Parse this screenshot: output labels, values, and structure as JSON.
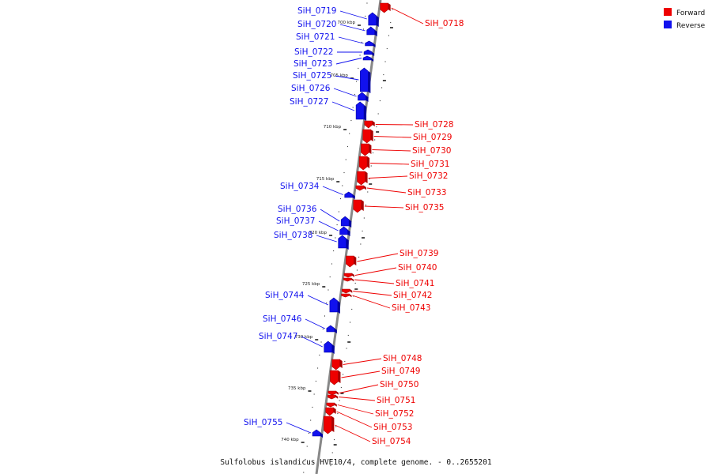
{
  "caption": "Sulfolobus islandicus HVE10/4, complete genome. - 0..2655201",
  "legend": [
    {
      "label": "Forward",
      "color": "#ee0000",
      "dark": "#aa0000",
      "strand": "forward"
    },
    {
      "label": "Reverse",
      "color": "#1111ee",
      "dark": "#0000a0",
      "strand": "reverse"
    }
  ],
  "kbp_labels": [
    "700 kbp",
    "705 kbp",
    "710 kbp",
    "715 kbp",
    "720 kbp",
    "725 kbp",
    "730 kbp",
    "735 kbp",
    "740 kbp"
  ],
  "genes": [
    {
      "name": "SiH_0718",
      "strand": "forward"
    },
    {
      "name": "SiH_0719",
      "strand": "reverse"
    },
    {
      "name": "SiH_0720",
      "strand": "reverse"
    },
    {
      "name": "SiH_0721",
      "strand": "reverse"
    },
    {
      "name": "SiH_0722",
      "strand": "reverse"
    },
    {
      "name": "SiH_0723",
      "strand": "reverse"
    },
    {
      "name": "SiH_0725",
      "strand": "reverse"
    },
    {
      "name": "SiH_0726",
      "strand": "reverse"
    },
    {
      "name": "SiH_0727",
      "strand": "reverse"
    },
    {
      "name": "SiH_0728",
      "strand": "forward"
    },
    {
      "name": "SiH_0729",
      "strand": "forward"
    },
    {
      "name": "SiH_0730",
      "strand": "forward"
    },
    {
      "name": "SiH_0731",
      "strand": "forward"
    },
    {
      "name": "SiH_0732",
      "strand": "forward"
    },
    {
      "name": "SiH_0733",
      "strand": "forward"
    },
    {
      "name": "SiH_0734",
      "strand": "reverse"
    },
    {
      "name": "SiH_0735",
      "strand": "forward"
    },
    {
      "name": "SiH_0736",
      "strand": "reverse"
    },
    {
      "name": "SiH_0737",
      "strand": "reverse"
    },
    {
      "name": "SiH_0738",
      "strand": "reverse"
    },
    {
      "name": "SiH_0739",
      "strand": "forward"
    },
    {
      "name": "SiH_0740",
      "strand": "forward"
    },
    {
      "name": "SiH_0741",
      "strand": "forward"
    },
    {
      "name": "SiH_0742",
      "strand": "forward"
    },
    {
      "name": "SiH_0743",
      "strand": "forward"
    },
    {
      "name": "SiH_0744",
      "strand": "reverse"
    },
    {
      "name": "SiH_0746",
      "strand": "reverse"
    },
    {
      "name": "SiH_0747",
      "strand": "reverse"
    },
    {
      "name": "SiH_0748",
      "strand": "forward"
    },
    {
      "name": "SiH_0749",
      "strand": "forward"
    },
    {
      "name": "SiH_0750",
      "strand": "forward"
    },
    {
      "name": "SiH_0751",
      "strand": "forward"
    },
    {
      "name": "SiH_0752",
      "strand": "forward"
    },
    {
      "name": "SiH_0753",
      "strand": "forward"
    },
    {
      "name": "SiH_0754",
      "strand": "forward"
    },
    {
      "name": "SiH_0755",
      "strand": "reverse"
    }
  ]
}
